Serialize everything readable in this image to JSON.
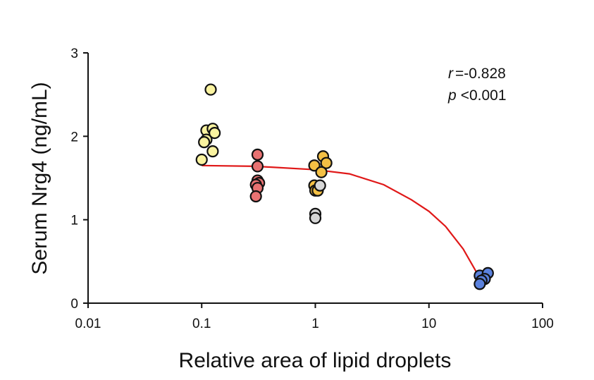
{
  "chart_data": {
    "type": "scatter",
    "title": "",
    "xlabel": "Relative area of lipid droplets",
    "ylabel": "Serum Nrg4  (ng/mL)",
    "x_scale": "log",
    "xlim": [
      0.01,
      100
    ],
    "ylim": [
      0,
      3
    ],
    "x_ticks": [
      0.01,
      0.1,
      1,
      10,
      100
    ],
    "x_tick_labels": [
      "0.01",
      "0.1",
      "1",
      "10",
      "100"
    ],
    "y_ticks": [
      0,
      1,
      2,
      3
    ],
    "y_tick_labels": [
      "0",
      "1",
      "2",
      "3"
    ],
    "grid": false,
    "stats": {
      "r_symbol": "r",
      "r_value": "=-0.828",
      "p_symbol": "p",
      "p_value": "<0.001"
    },
    "series": [
      {
        "name": "group-yellow",
        "color": "#FAF3A0",
        "points": [
          [
            0.12,
            2.56
          ],
          [
            0.11,
            2.07
          ],
          [
            0.125,
            2.09
          ],
          [
            0.13,
            2.04
          ],
          [
            0.11,
            1.96
          ],
          [
            0.105,
            1.93
          ],
          [
            0.125,
            1.82
          ],
          [
            0.1,
            1.72
          ]
        ]
      },
      {
        "name": "group-red",
        "color": "#E87272",
        "points": [
          [
            0.31,
            1.78
          ],
          [
            0.31,
            1.64
          ],
          [
            0.31,
            1.47
          ],
          [
            0.32,
            1.44
          ],
          [
            0.3,
            1.42
          ],
          [
            0.31,
            1.38
          ],
          [
            0.3,
            1.28
          ]
        ]
      },
      {
        "name": "group-orange",
        "color": "#F4C044",
        "points": [
          [
            1.17,
            1.76
          ],
          [
            0.98,
            1.65
          ],
          [
            1.25,
            1.68
          ],
          [
            1.13,
            1.57
          ],
          [
            0.98,
            1.41
          ],
          [
            1.0,
            1.35
          ],
          [
            1.05,
            1.35
          ]
        ]
      },
      {
        "name": "group-gray",
        "color": "#D6D6D6",
        "points": [
          [
            1.1,
            1.41
          ],
          [
            1.0,
            1.07
          ],
          [
            1.0,
            1.02
          ]
        ]
      },
      {
        "name": "group-blue",
        "color": "#5B82DE",
        "points": [
          [
            28,
            0.33
          ],
          [
            33,
            0.36
          ],
          [
            31,
            0.29
          ],
          [
            29,
            0.27
          ],
          [
            28,
            0.23
          ]
        ]
      }
    ],
    "fit_line": {
      "color": "#E01818",
      "points": [
        [
          0.1,
          1.65
        ],
        [
          0.3,
          1.64
        ],
        [
          1,
          1.6
        ],
        [
          2,
          1.55
        ],
        [
          4,
          1.42
        ],
        [
          7,
          1.24
        ],
        [
          10,
          1.1
        ],
        [
          14,
          0.92
        ],
        [
          20,
          0.65
        ],
        [
          25,
          0.42
        ],
        [
          28,
          0.3
        ]
      ]
    }
  }
}
